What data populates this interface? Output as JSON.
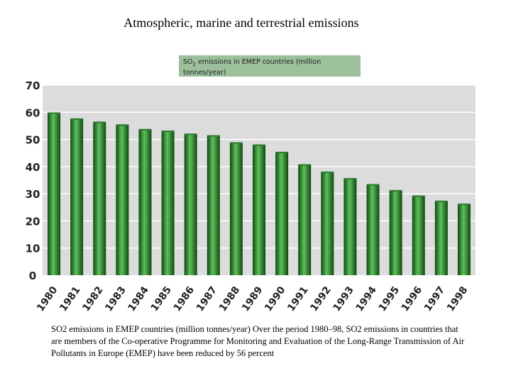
{
  "title": "Atmospheric, marine and terrestrial emissions",
  "legend_label_1": "SO",
  "legend_sub": "2",
  "legend_label_2": " emissions in EMEP countries (million tonnes/year)",
  "caption": "SO2 emissions in EMEP countries (million tonnes/year) Over the period 1980–98, SO2 emissions in countries that are members of the Co-operative Programme for Monitoring and Evaluation of the Long-Range Transmission of Air Pollutants in Europe (EMEP) have been reduced by 56 percent",
  "colors": {
    "plot_bg": "#dcdcdc",
    "bar_dark": "#0c4a0c",
    "bar_light": "#5fbf5f",
    "gridline": "#ffffff",
    "legend_bg": "#9cbf9c"
  },
  "chart_data": {
    "type": "bar",
    "categories": [
      "1980",
      "1981",
      "1982",
      "1983",
      "1984",
      "1985",
      "1986",
      "1987",
      "1988",
      "1989",
      "1990",
      "1991",
      "1992",
      "1993",
      "1994",
      "1995",
      "1996",
      "1997",
      "1998"
    ],
    "values": [
      59.7,
      57.5,
      56.3,
      55.3,
      53.6,
      53.0,
      51.9,
      51.3,
      48.7,
      47.9,
      45.2,
      40.6,
      37.9,
      35.5,
      33.3,
      31.1,
      29.1,
      27.2,
      26.1
    ],
    "ylim": [
      0,
      70
    ],
    "yticks": [
      0,
      10,
      20,
      30,
      40,
      50,
      60,
      70
    ],
    "grid": true,
    "legend": "top-center"
  }
}
